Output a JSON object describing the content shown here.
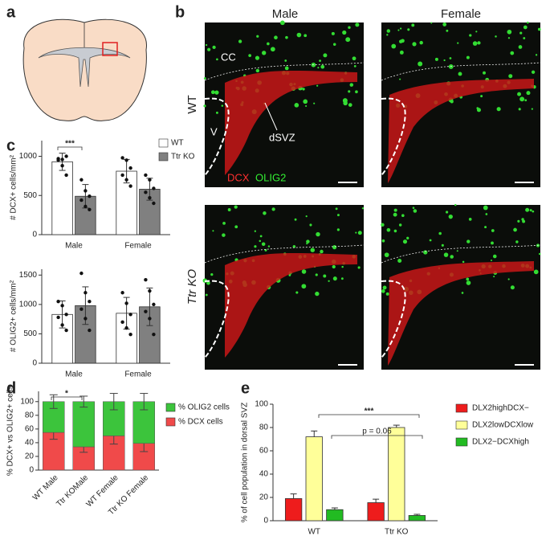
{
  "figure": {
    "panel_letters": [
      "a",
      "b",
      "c",
      "d",
      "e"
    ],
    "column_labels": [
      "Male",
      "Female"
    ],
    "row_labels": [
      "WT",
      "Ttr KO"
    ],
    "image_labels": {
      "cc": "CC",
      "v": "V",
      "dsvz": "dSVZ",
      "dcx": "DCX",
      "olig2": "OLIG2"
    }
  },
  "chart_data": [
    {
      "type": "bar",
      "ylabel": "# DCX+ cells/mm²",
      "categories": [
        "Male",
        "Female"
      ],
      "series": [
        {
          "name": "WT",
          "color": "#ffffff",
          "values": [
            930,
            810
          ],
          "errors": [
            110,
            150
          ],
          "points": [
            [
              970,
              960,
              1000,
              950,
              880,
              760
            ],
            [
              980,
              950,
              850,
              760,
              700,
              620
            ]
          ]
        },
        {
          "name": "Ttr KO",
          "color": "#808080",
          "values": [
            490,
            580
          ],
          "errors": [
            150,
            140
          ],
          "points": [
            [
              700,
              560,
              490,
              440,
              360,
              320
            ],
            [
              760,
              700,
              590,
              540,
              470,
              400
            ]
          ]
        }
      ],
      "ylim": [
        0,
        1200
      ],
      "yticks": [
        0,
        500,
        1000
      ],
      "annotations": [
        "***"
      ]
    },
    {
      "type": "bar",
      "ylabel": "# OLIG2+ cells/mm²",
      "categories": [
        "Male",
        "Female"
      ],
      "series": [
        {
          "name": "WT",
          "color": "#ffffff",
          "values": [
            830,
            850
          ],
          "errors": [
            230,
            270
          ],
          "points": [
            [
              1050,
              980,
              830,
              780,
              650,
              560
            ],
            [
              1200,
              1020,
              830,
              700,
              600,
              490
            ]
          ]
        },
        {
          "name": "Ttr KO",
          "color": "#808080",
          "values": [
            980,
            960
          ],
          "errors": [
            320,
            320
          ],
          "points": [
            [
              1530,
              1200,
              1050,
              920,
              760,
              560
            ],
            [
              1420,
              1230,
              1000,
              880,
              760,
              490
            ]
          ]
        }
      ],
      "ylim": [
        0,
        1600
      ],
      "yticks": [
        0,
        500,
        1000,
        1500
      ]
    },
    {
      "type": "stacked_bar",
      "ylabel": "% DCX+ vs OLIG2+ cells",
      "categories": [
        "WT Male",
        "Ttr KOMale",
        "WT Female",
        "Ttr KO Female"
      ],
      "series": [
        {
          "name": "% DCX cells",
          "color": "#f04a4a",
          "values": [
            55,
            34,
            50,
            39
          ],
          "errors": [
            10,
            8,
            12,
            12
          ]
        },
        {
          "name": "% OLIG2 cells",
          "color": "#3cc43c",
          "values": [
            45,
            66,
            50,
            61
          ],
          "errors": [
            10,
            8,
            12,
            12
          ]
        }
      ],
      "ylim": [
        0,
        115
      ],
      "yticks": [
        0,
        20,
        40,
        60,
        80,
        100
      ],
      "annotations": [
        "*"
      ]
    },
    {
      "type": "bar",
      "ylabel": "% of cell population in dorsal SVZ",
      "categories": [
        "WT",
        "Ttr KO"
      ],
      "series": [
        {
          "name": "DLX2highDCX−",
          "color": "#ee1c1c",
          "values": [
            19,
            15.5
          ],
          "errors": [
            4,
            3
          ]
        },
        {
          "name": "DLX2lowDCXlow",
          "color": "#ffff99",
          "values": [
            72,
            80
          ],
          "errors": [
            5,
            2
          ]
        },
        {
          "name": "DLX2−DCXhigh",
          "color": "#22bb22",
          "values": [
            9.5,
            4.5
          ],
          "errors": [
            1.5,
            1
          ]
        }
      ],
      "ylim": [
        0,
        100
      ],
      "yticks": [
        0,
        20,
        40,
        60,
        80,
        100
      ],
      "annotations": [
        "***",
        "p = 0.06"
      ]
    }
  ]
}
